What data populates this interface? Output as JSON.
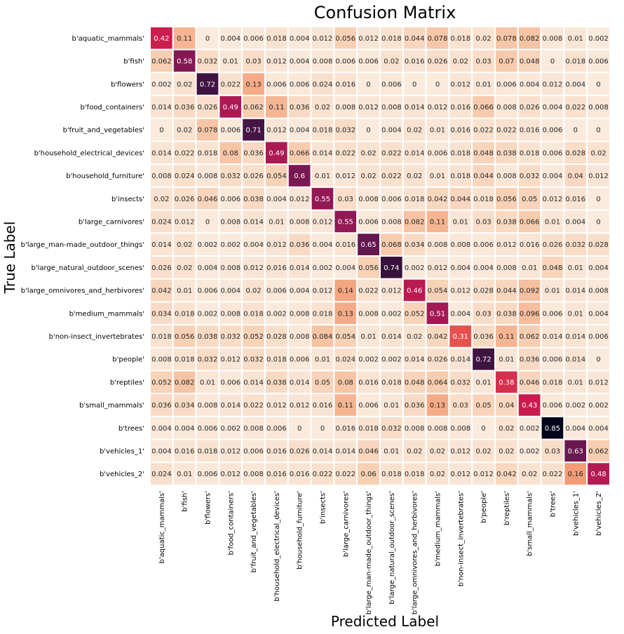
{
  "chart_data": {
    "type": "heatmap",
    "title": "Confusion Matrix",
    "xlabel": "Predicted Label",
    "ylabel": "True Label",
    "colormap": "rocket_r",
    "colorbar": false,
    "annot": true,
    "vmin": 0,
    "vmax": 0.85,
    "gridline_color": "#ffffff",
    "labels": [
      "b'aquatic_mammals'",
      "b'fish'",
      "b'flowers'",
      "b'food_containers'",
      "b'fruit_and_vegetables'",
      "b'household_electrical_devices'",
      "b'household_furniture'",
      "b'insects'",
      "b'large_carnivores'",
      "b'large_man-made_outdoor_things'",
      "b'large_natural_outdoor_scenes'",
      "b'large_omnivores_and_herbivores'",
      "b'medium_mammals'",
      "b'non-insect_invertebrates'",
      "b'people'",
      "b'reptiles'",
      "b'small_mammals'",
      "b'trees'",
      "b'vehicles_1'",
      "b'vehicles_2'"
    ],
    "matrix": [
      [
        0.42,
        0.11,
        0,
        0.004,
        0.006,
        0.018,
        0.004,
        0.012,
        0.056,
        0.012,
        0.018,
        0.044,
        0.078,
        0.018,
        0.02,
        0.078,
        0.082,
        0.008,
        0.01,
        0.002
      ],
      [
        0.062,
        0.58,
        0.032,
        0.01,
        0.03,
        0.012,
        0.004,
        0.008,
        0.006,
        0.006,
        0.02,
        0.016,
        0.026,
        0.02,
        0.03,
        0.07,
        0.048,
        0,
        0.018,
        0.006
      ],
      [
        0.002,
        0.02,
        0.72,
        0.022,
        0.13,
        0.006,
        0.006,
        0.024,
        0.016,
        0,
        0.006,
        0,
        0,
        0.012,
        0.01,
        0.006,
        0.004,
        0.012,
        0.004,
        0
      ],
      [
        0.014,
        0.036,
        0.026,
        0.49,
        0.062,
        0.11,
        0.036,
        0.02,
        0.008,
        0.012,
        0.008,
        0.014,
        0.012,
        0.016,
        0.066,
        0.008,
        0.026,
        0.004,
        0.022,
        0.008
      ],
      [
        0,
        0.02,
        0.078,
        0.006,
        0.71,
        0.012,
        0.004,
        0.018,
        0.032,
        0,
        0.004,
        0.02,
        0.01,
        0.016,
        0.022,
        0.022,
        0.016,
        0.006,
        0,
        0
      ],
      [
        0.014,
        0.022,
        0.018,
        0.08,
        0.036,
        0.49,
        0.066,
        0.014,
        0.022,
        0.02,
        0.022,
        0.014,
        0.006,
        0.018,
        0.048,
        0.038,
        0.018,
        0.006,
        0.028,
        0.02
      ],
      [
        0.008,
        0.024,
        0.008,
        0.032,
        0.026,
        0.054,
        0.6,
        0.01,
        0.012,
        0.02,
        0.022,
        0.02,
        0.01,
        0.018,
        0.044,
        0.008,
        0.032,
        0.004,
        0.04,
        0.012
      ],
      [
        0.02,
        0.026,
        0.046,
        0.006,
        0.038,
        0.004,
        0.012,
        0.55,
        0.03,
        0.008,
        0.006,
        0.018,
        0.042,
        0.044,
        0.018,
        0.056,
        0.05,
        0.012,
        0.016,
        0
      ],
      [
        0.024,
        0.012,
        0,
        0.008,
        0.014,
        0.01,
        0.008,
        0.012,
        0.55,
        0.006,
        0.008,
        0.082,
        0.11,
        0.01,
        0.03,
        0.038,
        0.066,
        0.01,
        0.004,
        0
      ],
      [
        0.014,
        0.02,
        0.002,
        0.002,
        0.004,
        0.012,
        0.036,
        0.004,
        0.016,
        0.65,
        0.068,
        0.034,
        0.008,
        0.008,
        0.006,
        0.012,
        0.016,
        0.026,
        0.032,
        0.028
      ],
      [
        0.026,
        0.02,
        0.004,
        0.008,
        0.012,
        0.016,
        0.014,
        0.002,
        0.004,
        0.056,
        0.74,
        0.002,
        0.012,
        0.004,
        0.004,
        0.008,
        0.01,
        0.048,
        0.01,
        0.004
      ],
      [
        0.042,
        0.01,
        0.006,
        0.004,
        0.02,
        0.006,
        0.004,
        0.012,
        0.14,
        0.022,
        0.012,
        0.46,
        0.054,
        0.012,
        0.028,
        0.044,
        0.092,
        0.01,
        0.014,
        0.008
      ],
      [
        0.034,
        0.018,
        0.002,
        0.008,
        0.018,
        0.002,
        0.008,
        0.018,
        0.13,
        0.008,
        0.002,
        0.052,
        0.51,
        0.004,
        0.03,
        0.038,
        0.096,
        0.006,
        0.01,
        0.004
      ],
      [
        0.018,
        0.056,
        0.038,
        0.032,
        0.052,
        0.028,
        0.008,
        0.084,
        0.054,
        0.01,
        0.014,
        0.02,
        0.042,
        0.31,
        0.036,
        0.11,
        0.062,
        0.014,
        0.014,
        0.006
      ],
      [
        0.008,
        0.018,
        0.032,
        0.012,
        0.032,
        0.018,
        0.006,
        0.01,
        0.024,
        0.002,
        0.002,
        0.014,
        0.026,
        0.014,
        0.72,
        0.01,
        0.036,
        0.006,
        0.014,
        0
      ],
      [
        0.052,
        0.082,
        0.01,
        0.006,
        0.014,
        0.038,
        0.014,
        0.05,
        0.08,
        0.016,
        0.018,
        0.048,
        0.064,
        0.032,
        0.01,
        0.38,
        0.046,
        0.018,
        0.01,
        0.012
      ],
      [
        0.036,
        0.034,
        0.008,
        0.014,
        0.022,
        0.012,
        0.012,
        0.016,
        0.11,
        0.006,
        0.01,
        0.036,
        0.13,
        0.03,
        0.05,
        0.04,
        0.43,
        0.006,
        0.002,
        0.002
      ],
      [
        0.004,
        0.004,
        0.006,
        0.002,
        0.008,
        0.006,
        0,
        0,
        0.016,
        0.018,
        0.032,
        0.008,
        0.008,
        0.008,
        0,
        0.02,
        0.002,
        0.85,
        0.004,
        0.004
      ],
      [
        0.004,
        0.016,
        0.018,
        0.012,
        0.006,
        0.016,
        0.026,
        0.014,
        0.014,
        0.046,
        0.01,
        0.02,
        0.02,
        0.012,
        0.02,
        0.02,
        0.002,
        0.03,
        0.63,
        0.062
      ],
      [
        0.024,
        0.01,
        0.006,
        0.012,
        0.008,
        0.016,
        0.016,
        0.022,
        0.022,
        0.06,
        0.018,
        0.018,
        0.02,
        0.012,
        0.012,
        0.042,
        0.02,
        0.022,
        0.16,
        0.48
      ]
    ]
  }
}
